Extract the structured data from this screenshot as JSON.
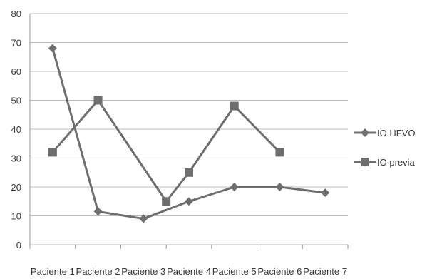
{
  "chart_data": {
    "type": "line",
    "categories": [
      "Paciente 1",
      "Paciente 2",
      "Paciente 3",
      "Paciente 4",
      "Paciente 5",
      "Paciente 6",
      "Paciente 7"
    ],
    "series": [
      {
        "name": "IO HFVO",
        "marker": "diamond",
        "color": "#6e6e6e",
        "values": [
          68,
          11.5,
          9,
          15,
          20,
          20,
          18
        ]
      },
      {
        "name": "IO previa",
        "marker": "square",
        "color": "#6e6e6e",
        "values": [
          32,
          50,
          null,
          25,
          48,
          32,
          null
        ],
        "extra_point": {
          "x_between": [
            2,
            3
          ],
          "value": 15
        }
      }
    ],
    "y_ticks": [
      0,
      10,
      20,
      30,
      40,
      50,
      60,
      70,
      80
    ],
    "ylim": [
      0,
      80
    ],
    "grid": true,
    "legend_position": "right",
    "title": "",
    "xlabel": "",
    "ylabel": ""
  }
}
